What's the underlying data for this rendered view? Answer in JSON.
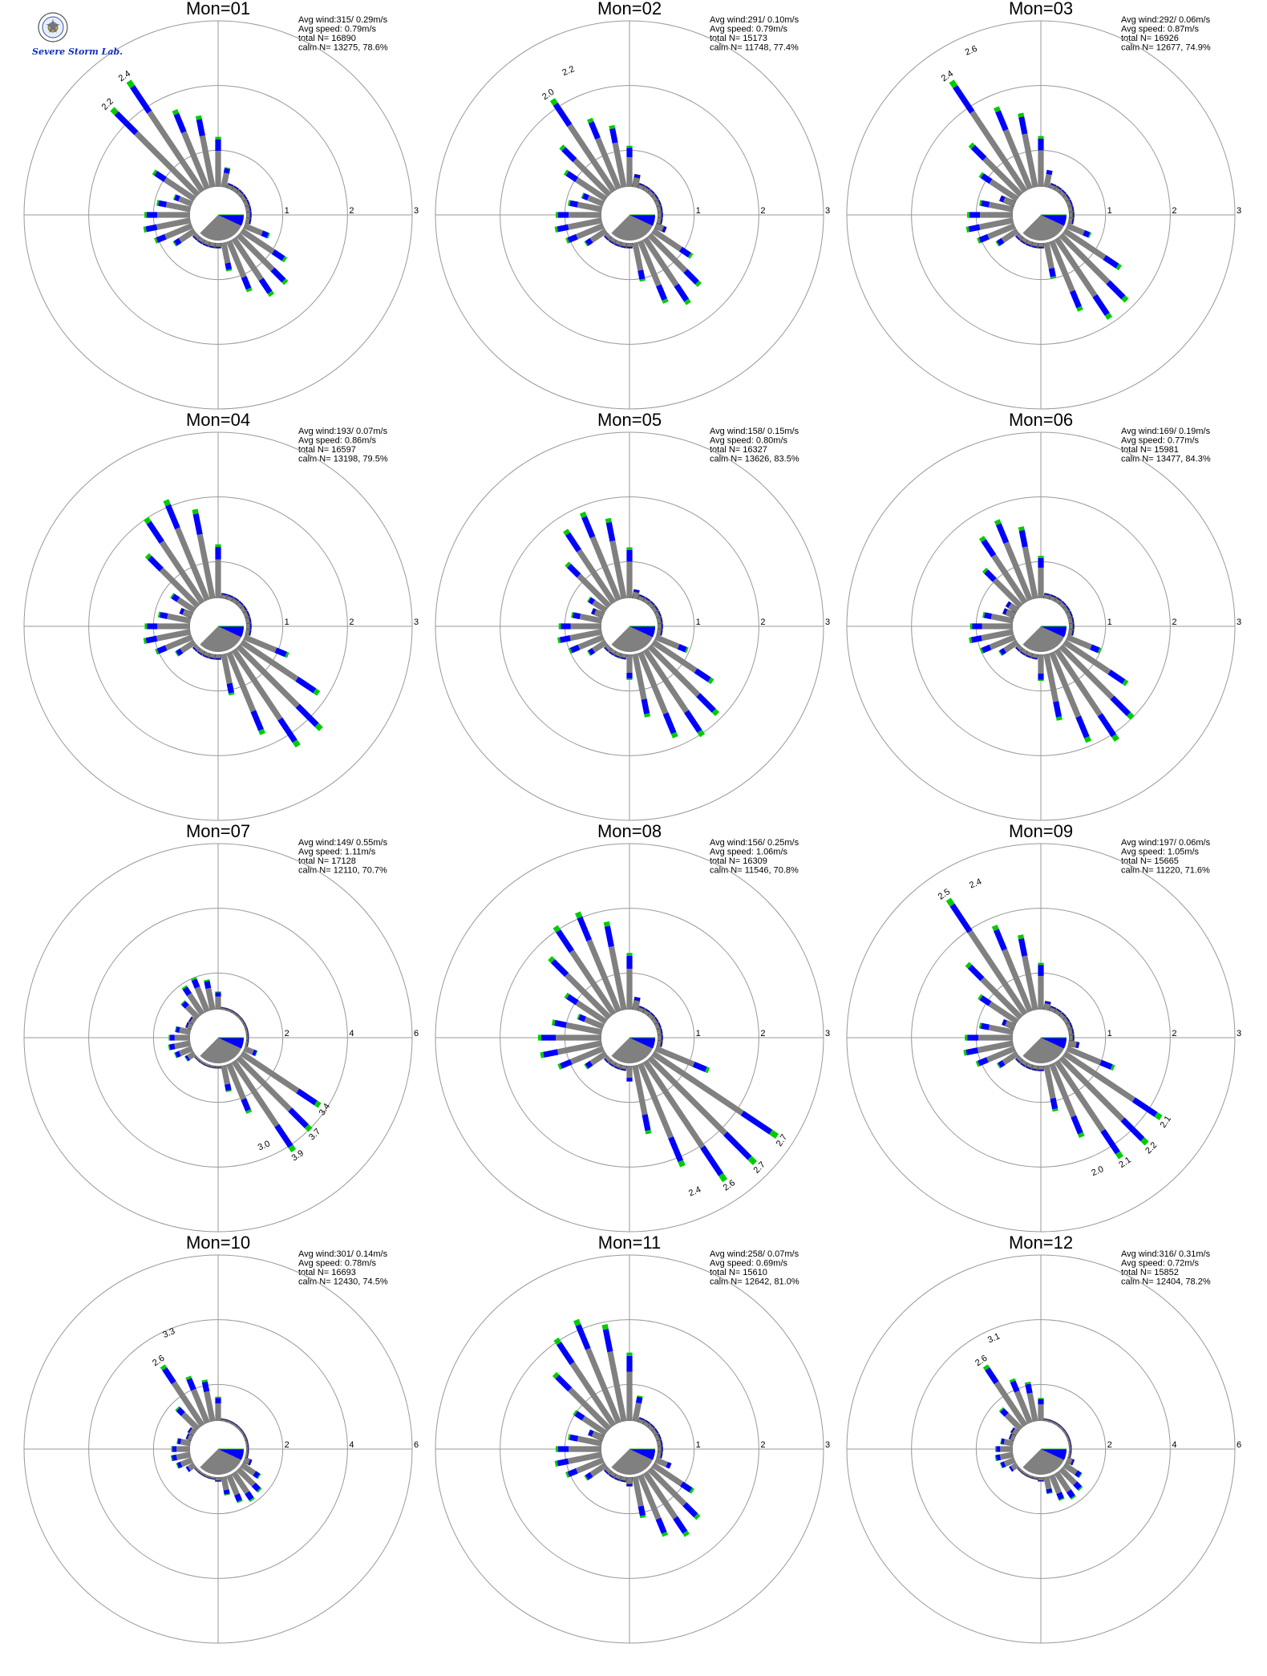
{
  "logo": {
    "emblem_icon": "university-seal-icon",
    "text": "Severe Storm Lab.",
    "colors": {
      "severe": "#1030c0",
      "storm": "#d02020",
      "lab": "#20a020"
    }
  },
  "colors": {
    "speed_bins": [
      "#808080",
      "#0000ff",
      "#00cc00",
      "#ff3300"
    ],
    "ring": "#999999",
    "axis": "#999999",
    "calm_sector": "#808080",
    "mean_wind_sector": "#0000ff"
  },
  "chart_data": [
    {
      "type": "polar-bar",
      "title": "Mon=01",
      "avg_wind": "Avg wind:315/ 0.29m/s",
      "avg_speed": "Avg speed: 0.79m/s",
      "total": "total N=       16890",
      "calm": "calm N=  13275,  78.6%",
      "ring_labels": [
        "1",
        "2",
        "3"
      ],
      "r_max": 3,
      "mean_dir": 315,
      "bars": [
        {
          "dir": 315,
          "value": 2.2
        },
        {
          "dir": 326,
          "value": 2.4
        }
      ],
      "lobes": [
        {
          "c": 332,
          "w": 44,
          "p": 1.45
        },
        {
          "c": 141,
          "w": 36,
          "p": 1.15
        },
        {
          "c": 262,
          "w": 36,
          "p": 0.75
        }
      ],
      "labels": [
        {
          "dir": 315,
          "text": "2.2"
        },
        {
          "dir": 326,
          "text": "2.4"
        }
      ]
    },
    {
      "type": "polar-bar",
      "title": "Mon=02",
      "avg_wind": "Avg wind:291/ 0.10m/s",
      "avg_speed": "Avg speed: 0.79m/s",
      "total": "total N=       15173",
      "calm": "calm N=  11748,  77.4%",
      "ring_labels": [
        "1",
        "2",
        "3"
      ],
      "r_max": 3,
      "mean_dir": 291,
      "bars": [
        {
          "dir": 326,
          "value": 2.0
        },
        {
          "dir": 337,
          "value": 2.2
        }
      ],
      "lobes": [
        {
          "c": 330,
          "w": 44,
          "p": 1.3
        },
        {
          "c": 145,
          "w": 34,
          "p": 1.3
        },
        {
          "c": 262,
          "w": 36,
          "p": 0.75
        }
      ],
      "labels": [
        {
          "dir": 326,
          "text": "2.0"
        },
        {
          "dir": 337,
          "text": "2.2"
        }
      ]
    },
    {
      "type": "polar-bar",
      "title": "Mon=03",
      "avg_wind": "Avg wind:292/ 0.06m/s",
      "avg_speed": "Avg speed: 0.87m/s",
      "total": "total N=       16926",
      "calm": "calm N=  12677,  74.9%",
      "ring_labels": [
        "1",
        "2",
        "3"
      ],
      "r_max": 3,
      "mean_dir": 292,
      "bars": [
        {
          "dir": 326,
          "value": 2.4
        },
        {
          "dir": 337,
          "value": 2.6
        }
      ],
      "lobes": [
        {
          "c": 333,
          "w": 42,
          "p": 1.5
        },
        {
          "c": 142,
          "w": 34,
          "p": 1.65
        },
        {
          "c": 262,
          "w": 36,
          "p": 0.75
        }
      ],
      "labels": [
        {
          "dir": 326,
          "text": "2.4"
        },
        {
          "dir": 337,
          "text": "2.6"
        }
      ]
    },
    {
      "type": "polar-bar",
      "title": "Mon=04",
      "avg_wind": "Avg wind:193/ 0.07m/s",
      "avg_speed": "Avg speed: 0.86m/s",
      "total": "total N=       16597",
      "calm": "calm N=  13198,  79.5%",
      "ring_labels": [
        "1",
        "2",
        "3"
      ],
      "r_max": 3,
      "mean_dir": 193,
      "bars": [],
      "lobes": [
        {
          "c": 335,
          "w": 36,
          "p": 1.85
        },
        {
          "c": 140,
          "w": 36,
          "p": 2.05
        },
        {
          "c": 262,
          "w": 34,
          "p": 0.75
        }
      ],
      "labels": []
    },
    {
      "type": "polar-bar",
      "title": "Mon=05",
      "avg_wind": "Avg wind:158/ 0.15m/s",
      "avg_speed": "Avg speed: 0.80m/s",
      "total": "total N=       16327",
      "calm": "calm N=  13626,  83.5%",
      "ring_labels": [
        "1",
        "2",
        "3"
      ],
      "r_max": 3,
      "mean_dir": 158,
      "bars": [],
      "lobes": [
        {
          "c": 336,
          "w": 36,
          "p": 1.6
        },
        {
          "c": 145,
          "w": 40,
          "p": 1.75
        },
        {
          "c": 262,
          "w": 34,
          "p": 0.7
        }
      ],
      "labels": []
    },
    {
      "type": "polar-bar",
      "title": "Mon=06",
      "avg_wind": "Avg wind:169/ 0.19m/s",
      "avg_speed": "Avg speed: 0.77m/s",
      "total": "total N=       15981",
      "calm": "calm N=  13477,  84.3%",
      "ring_labels": [
        "1",
        "2",
        "3"
      ],
      "r_max": 3,
      "mean_dir": 169,
      "bars": [],
      "lobes": [
        {
          "c": 336,
          "w": 34,
          "p": 1.45
        },
        {
          "c": 145,
          "w": 40,
          "p": 1.85
        },
        {
          "c": 262,
          "w": 34,
          "p": 0.7
        }
      ],
      "labels": []
    },
    {
      "type": "polar-bar",
      "title": "Mon=07",
      "avg_wind": "Avg wind:149/ 0.55m/s",
      "avg_speed": "Avg speed: 1.11m/s",
      "total": "total N=       17128",
      "calm": "calm N=  12110,  70.7%",
      "ring_labels": [
        "2",
        "4",
        "6"
      ],
      "r_max": 6,
      "mean_dir": 149,
      "bars": [
        {
          "dir": 124,
          "value": 3.4
        },
        {
          "dir": 135,
          "value": 3.7
        },
        {
          "dir": 146,
          "value": 3.9
        },
        {
          "dir": 157,
          "value": 3.0
        }
      ],
      "lobes": [
        {
          "c": 336,
          "w": 34,
          "p": 1.2
        },
        {
          "c": 143,
          "w": 34,
          "p": 2.3
        },
        {
          "c": 262,
          "w": 34,
          "p": 0.7
        }
      ],
      "labels": [
        {
          "dir": 124,
          "text": "3.4"
        },
        {
          "dir": 135,
          "text": "3.7"
        },
        {
          "dir": 146,
          "text": "3.9"
        },
        {
          "dir": 157,
          "text": "3.0"
        }
      ]
    },
    {
      "type": "polar-bar",
      "title": "Mon=08",
      "avg_wind": "Avg wind:156/ 0.25m/s",
      "avg_speed": "Avg speed: 1.06m/s",
      "total": "total N=       16309",
      "calm": "calm N=  11546,  70.8%",
      "ring_labels": [
        "1",
        "2",
        "3"
      ],
      "r_max": 3,
      "mean_dir": 156,
      "bars": [
        {
          "dir": 124,
          "value": 2.7
        },
        {
          "dir": 135,
          "value": 2.7
        },
        {
          "dir": 146,
          "value": 2.6
        },
        {
          "dir": 157,
          "value": 2.4
        }
      ],
      "lobes": [
        {
          "c": 333,
          "w": 40,
          "p": 1.85
        },
        {
          "c": 142,
          "w": 40,
          "p": 2.3
        },
        {
          "c": 265,
          "w": 36,
          "p": 1.05
        }
      ],
      "labels": [
        {
          "dir": 124,
          "text": "2.7"
        },
        {
          "dir": 135,
          "text": "2.7"
        },
        {
          "dir": 146,
          "text": "2.6"
        },
        {
          "dir": 157,
          "text": "2.4"
        }
      ]
    },
    {
      "type": "polar-bar",
      "title": "Mon=09",
      "avg_wind": "Avg wind:197/ 0.06m/s",
      "avg_speed": "Avg speed: 1.05m/s",
      "total": "total N=       15665",
      "calm": "calm N=  11220,  71.6%",
      "ring_labels": [
        "1",
        "2",
        "3"
      ],
      "r_max": 3,
      "mean_dir": 197,
      "bars": [
        {
          "dir": 326,
          "value": 2.5
        },
        {
          "dir": 337,
          "value": 2.4
        },
        {
          "dir": 124,
          "value": 2.1
        },
        {
          "dir": 135,
          "value": 2.2
        },
        {
          "dir": 146,
          "value": 2.1
        },
        {
          "dir": 157,
          "value": 2.0
        }
      ],
      "lobes": [
        {
          "c": 332,
          "w": 40,
          "p": 1.6
        },
        {
          "c": 140,
          "w": 40,
          "p": 1.7
        },
        {
          "c": 262,
          "w": 34,
          "p": 0.8
        }
      ],
      "labels": [
        {
          "dir": 326,
          "text": "2.5"
        },
        {
          "dir": 337,
          "text": "2.4"
        },
        {
          "dir": 124,
          "text": "2.1"
        },
        {
          "dir": 135,
          "text": "2.2"
        },
        {
          "dir": 146,
          "text": "2.1"
        },
        {
          "dir": 157,
          "text": "2.0"
        }
      ]
    },
    {
      "type": "polar-bar",
      "title": "Mon=10",
      "avg_wind": "Avg wind:301/ 0.14m/s",
      "avg_speed": "Avg speed: 0.78m/s",
      "total": "total N=       16693",
      "calm": "calm N=  12430,  74.5%",
      "ring_labels": [
        "2",
        "4",
        "6"
      ],
      "r_max": 6,
      "mean_dir": 301,
      "bars": [
        {
          "dir": 326,
          "value": 2.6
        },
        {
          "dir": 337,
          "value": 3.3
        }
      ],
      "lobes": [
        {
          "c": 336,
          "w": 34,
          "p": 1.7
        },
        {
          "c": 145,
          "w": 36,
          "p": 1.1
        },
        {
          "c": 262,
          "w": 34,
          "p": 0.6
        }
      ],
      "labels": [
        {
          "dir": 326,
          "text": "2.6"
        },
        {
          "dir": 337,
          "text": "3.3"
        }
      ]
    },
    {
      "type": "polar-bar",
      "title": "Mon=11",
      "avg_wind": "Avg wind:258/ 0.07m/s",
      "avg_speed": "Avg speed: 0.69m/s",
      "total": "total N=       15610",
      "calm": "calm N=  12642,  81.0%",
      "ring_labels": [
        "1",
        "2",
        "3"
      ],
      "r_max": 3,
      "mean_dir": 258,
      "bars": [],
      "lobes": [
        {
          "c": 336,
          "w": 40,
          "p": 1.9
        },
        {
          "c": 145,
          "w": 36,
          "p": 1.25
        },
        {
          "c": 262,
          "w": 36,
          "p": 0.75
        }
      ],
      "labels": []
    },
    {
      "type": "polar-bar",
      "title": "Mon=12",
      "avg_wind": "Avg wind:316/ 0.31m/s",
      "avg_speed": "Avg speed: 0.72m/s",
      "total": "total N=       15852",
      "calm": "calm N=  12404,  78.2%",
      "ring_labels": [
        "2",
        "4",
        "6"
      ],
      "r_max": 6,
      "mean_dir": 316,
      "bars": [
        {
          "dir": 326,
          "value": 2.6
        },
        {
          "dir": 337,
          "value": 3.1
        }
      ],
      "lobes": [
        {
          "c": 336,
          "w": 34,
          "p": 1.6
        },
        {
          "c": 145,
          "w": 36,
          "p": 1.0
        },
        {
          "c": 262,
          "w": 34,
          "p": 0.55
        }
      ],
      "labels": [
        {
          "dir": 326,
          "text": "2.6"
        },
        {
          "dir": 337,
          "text": "3.1"
        }
      ]
    }
  ]
}
